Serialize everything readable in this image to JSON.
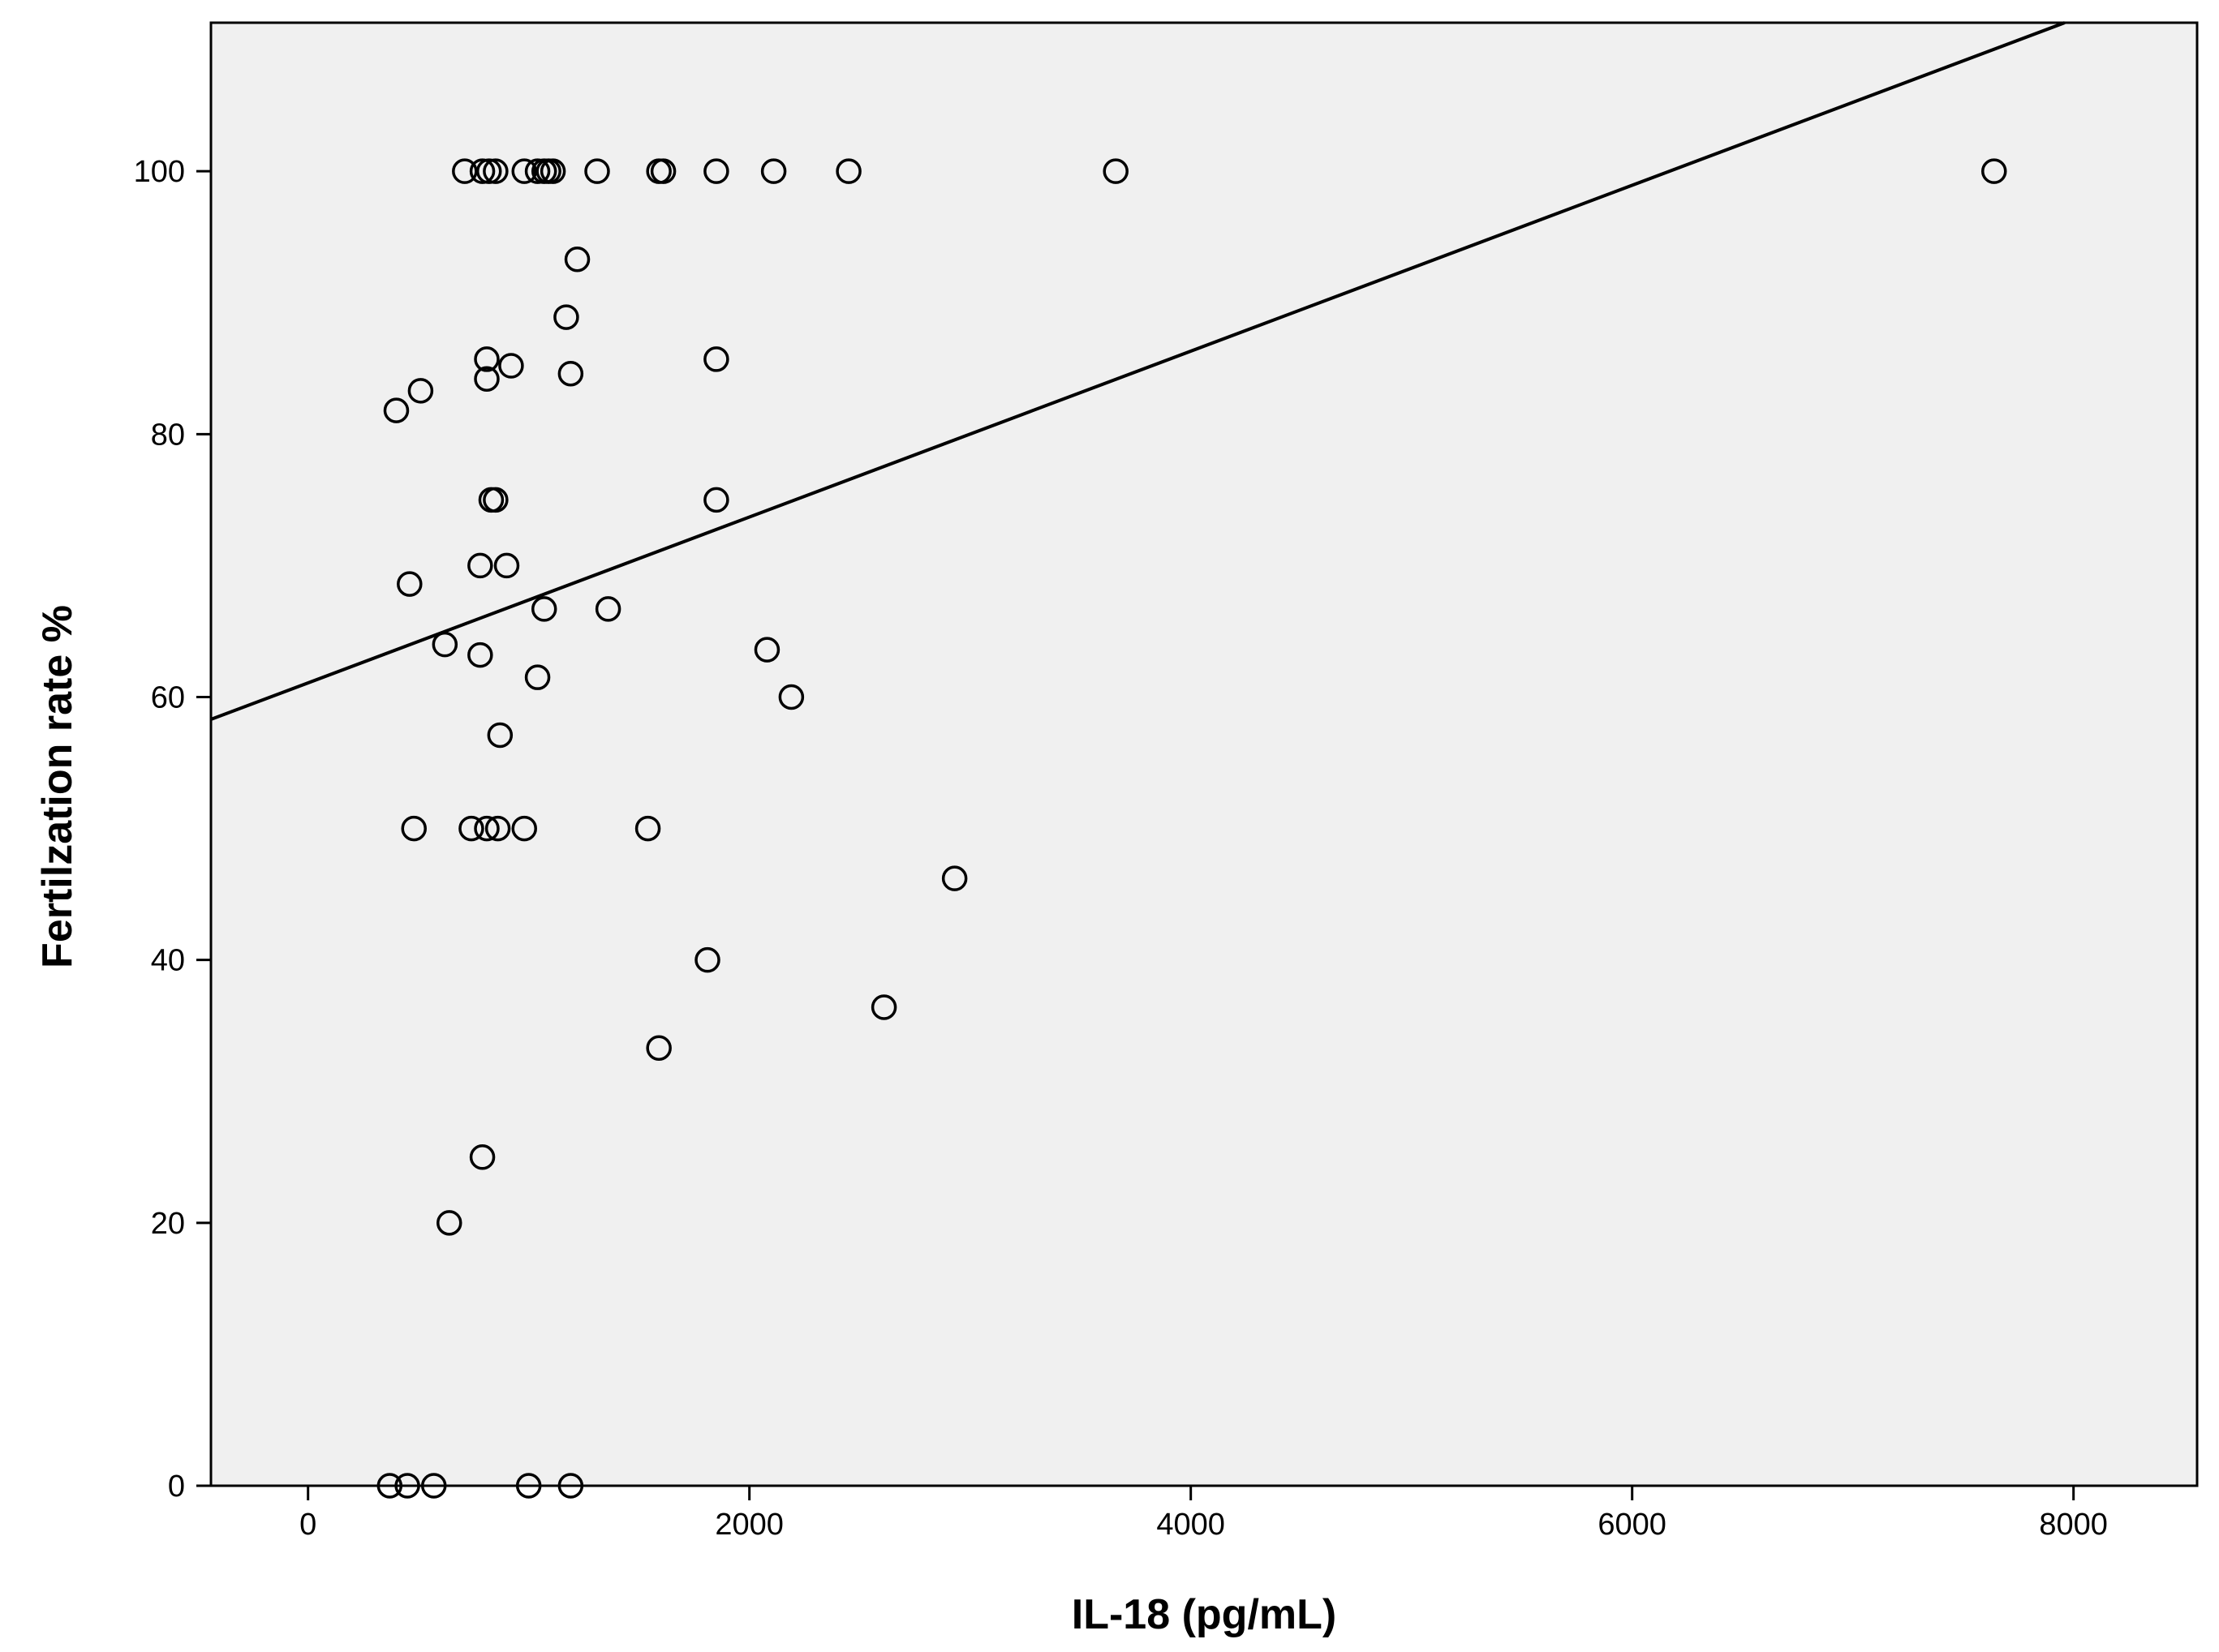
{
  "chart_data": {
    "type": "scatter",
    "title": "",
    "xlabel": "IL-18 (pg/mL)",
    "ylabel": "Fertilzation rate %",
    "xlim": [
      -440,
      8560
    ],
    "ylim": [
      0,
      111.3
    ],
    "x_ticks": [
      0,
      2000,
      4000,
      6000,
      8000
    ],
    "y_ticks": [
      0,
      20,
      40,
      60,
      80,
      100
    ],
    "grid": false,
    "colors": {
      "plot_background": "#f0f0f0",
      "marker_stroke": "#000000",
      "fit_line": "#000000"
    },
    "points": [
      {
        "x": 710,
        "y": 100
      },
      {
        "x": 790,
        "y": 100
      },
      {
        "x": 820,
        "y": 100
      },
      {
        "x": 850,
        "y": 100
      },
      {
        "x": 980,
        "y": 100
      },
      {
        "x": 1040,
        "y": 100
      },
      {
        "x": 1070,
        "y": 100
      },
      {
        "x": 1090,
        "y": 100
      },
      {
        "x": 1110,
        "y": 100
      },
      {
        "x": 1310,
        "y": 100
      },
      {
        "x": 1590,
        "y": 100
      },
      {
        "x": 1610,
        "y": 100
      },
      {
        "x": 1850,
        "y": 100
      },
      {
        "x": 2110,
        "y": 100
      },
      {
        "x": 2450,
        "y": 100
      },
      {
        "x": 3660,
        "y": 100
      },
      {
        "x": 7640,
        "y": 100
      },
      {
        "x": 1220,
        "y": 93.3
      },
      {
        "x": 1170,
        "y": 88.9
      },
      {
        "x": 810,
        "y": 85.7
      },
      {
        "x": 1850,
        "y": 85.7
      },
      {
        "x": 920,
        "y": 85.2
      },
      {
        "x": 1190,
        "y": 84.6
      },
      {
        "x": 810,
        "y": 84.2
      },
      {
        "x": 510,
        "y": 83.3
      },
      {
        "x": 400,
        "y": 81.8
      },
      {
        "x": 830,
        "y": 75
      },
      {
        "x": 850,
        "y": 75
      },
      {
        "x": 1850,
        "y": 75
      },
      {
        "x": 780,
        "y": 70
      },
      {
        "x": 900,
        "y": 70
      },
      {
        "x": 460,
        "y": 68.6
      },
      {
        "x": 1070,
        "y": 66.7
      },
      {
        "x": 1360,
        "y": 66.7
      },
      {
        "x": 620,
        "y": 64
      },
      {
        "x": 2080,
        "y": 63.6
      },
      {
        "x": 780,
        "y": 63.2
      },
      {
        "x": 1040,
        "y": 61.5
      },
      {
        "x": 2190,
        "y": 60
      },
      {
        "x": 870,
        "y": 57.1
      },
      {
        "x": 480,
        "y": 50
      },
      {
        "x": 740,
        "y": 50
      },
      {
        "x": 810,
        "y": 50
      },
      {
        "x": 860,
        "y": 50
      },
      {
        "x": 980,
        "y": 50
      },
      {
        "x": 1540,
        "y": 50
      },
      {
        "x": 2930,
        "y": 46.2
      },
      {
        "x": 1810,
        "y": 40
      },
      {
        "x": 2610,
        "y": 36.4
      },
      {
        "x": 1590,
        "y": 33.3
      },
      {
        "x": 790,
        "y": 25
      },
      {
        "x": 640,
        "y": 20
      },
      {
        "x": 370,
        "y": 0
      },
      {
        "x": 450,
        "y": 0
      },
      {
        "x": 570,
        "y": 0
      },
      {
        "x": 1000,
        "y": 0
      },
      {
        "x": 1190,
        "y": 0
      }
    ],
    "fit_line": {
      "x": [
        -440,
        7960
      ],
      "y": [
        58.3,
        111.3
      ]
    }
  }
}
